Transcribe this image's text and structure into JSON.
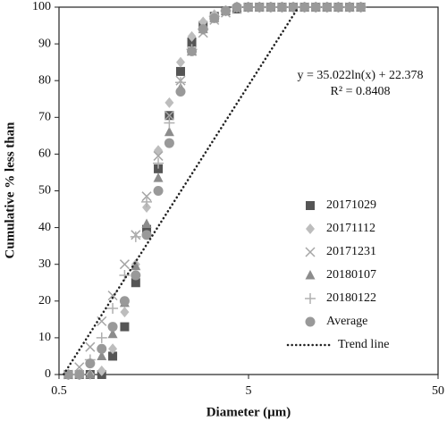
{
  "chart_data": {
    "type": "scatter",
    "xlabel": "Diameter (µm)",
    "ylabel": "Cumulative % less than",
    "x": [
      0.56,
      0.64,
      0.73,
      0.84,
      0.96,
      1.11,
      1.27,
      1.45,
      1.67,
      1.91,
      2.19,
      2.51,
      2.88,
      3.3,
      3.79,
      4.34,
      4.98,
      5.71,
      6.55,
      7.51,
      8.61,
      9.87,
      11.32,
      12.98,
      14.89,
      17.07,
      19.56
    ],
    "series": [
      {
        "name": "20171029",
        "marker": "square",
        "color": "#555555",
        "values": [
          0,
          0,
          0,
          0,
          5,
          13,
          25,
          39.5,
          56,
          70.5,
          82.5,
          90.5,
          95,
          97.5,
          99,
          99.5,
          100,
          100,
          100,
          100,
          100,
          100,
          100,
          100,
          100,
          100,
          100
        ]
      },
      {
        "name": "20171112",
        "marker": "diamond",
        "color": "#bdbdbd",
        "values": [
          0,
          0,
          0,
          1,
          7,
          17,
          30,
          45.5,
          61,
          74,
          85,
          92,
          96,
          98,
          99,
          100,
          100,
          100,
          100,
          100,
          100,
          100,
          100,
          100,
          100,
          100,
          100
        ]
      },
      {
        "name": "20171231",
        "marker": "cross",
        "color": "#a6a6a6",
        "values": [
          0,
          2,
          7.5,
          14.5,
          21.5,
          30,
          38,
          48.5,
          59.5,
          70.5,
          80,
          88,
          93,
          96.5,
          98.5,
          99.5,
          100,
          100,
          100,
          100,
          100,
          100,
          100,
          100,
          100,
          100,
          100
        ]
      },
      {
        "name": "20180107",
        "marker": "triangle",
        "color": "#8c8c8c",
        "values": [
          0,
          0,
          0,
          5,
          11,
          19.5,
          29.5,
          41,
          53.5,
          66,
          78,
          88,
          94,
          97,
          99,
          100,
          100,
          100,
          100,
          100,
          100,
          100,
          100,
          100,
          100,
          100,
          100
        ]
      },
      {
        "name": "20180122",
        "marker": "plus",
        "color": "#b0b0b0",
        "values": [
          0,
          0,
          4,
          10,
          18,
          27,
          37.5,
          47,
          57.5,
          68.5,
          79.5,
          88.5,
          94,
          97.5,
          99,
          100,
          100,
          100,
          100,
          100,
          100,
          100,
          100,
          100,
          100,
          100,
          100
        ]
      },
      {
        "name": "Average",
        "marker": "circle",
        "color": "#999999",
        "values": [
          0,
          0,
          3,
          7,
          13,
          20,
          27,
          38,
          50,
          63,
          77,
          88,
          94,
          97,
          99,
          100,
          100,
          100,
          100,
          100,
          100,
          100,
          100,
          100,
          100,
          100,
          100
        ]
      },
      {
        "name": "Trend line",
        "marker": "dotted-line",
        "color": "#222222",
        "x": [
          0.53,
          9.17
        ],
        "values": [
          0.1,
          100
        ]
      }
    ],
    "annotations": [
      "y = 35.022ln(x) + 22.378",
      "R² = 0.8408"
    ],
    "xlim": [
      0.5,
      50
    ],
    "xticks": [
      0.5,
      5,
      50
    ],
    "xscale": "log",
    "ylim": [
      0,
      100
    ],
    "yticks": [
      0,
      10,
      20,
      30,
      40,
      50,
      60,
      70,
      80,
      90,
      100
    ],
    "grid": false,
    "legend": "lower right"
  }
}
